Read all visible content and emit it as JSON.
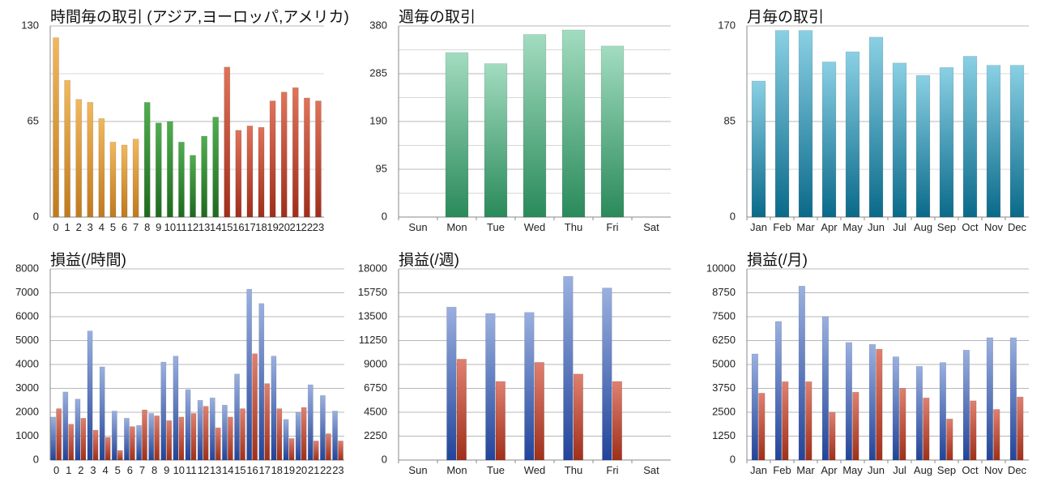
{
  "chart_data": [
    {
      "type": "bar",
      "title": "時間毎の取引 (アジア,ヨーロッパ,アメリカ)",
      "categories": [
        "0",
        "1",
        "2",
        "3",
        "4",
        "5",
        "6",
        "7",
        "8",
        "9",
        "10",
        "11",
        "12",
        "13",
        "14",
        "15",
        "16",
        "17",
        "18",
        "19",
        "20",
        "21",
        "22",
        "23"
      ],
      "series": [
        {
          "values": [
            122,
            93,
            80,
            78,
            67,
            51,
            49,
            53,
            78,
            64,
            65,
            51,
            42,
            55,
            68,
            102,
            59,
            62,
            61,
            79,
            85,
            88,
            81,
            79
          ]
        }
      ],
      "bar_colors": {
        "asia": "#e0a040",
        "europe": "#2e8a2e",
        "america": "#c8503a"
      },
      "yticks": [
        "0",
        "65",
        "130"
      ],
      "ylim": [
        0,
        130
      ],
      "grid": true
    },
    {
      "type": "bar",
      "title": "週毎の取引",
      "categories": [
        "Sun",
        "Mon",
        "Tue",
        "Wed",
        "Thu",
        "Fri",
        "Sat"
      ],
      "series": [
        {
          "values": [
            0,
            327,
            305,
            363,
            372,
            340,
            0
          ]
        }
      ],
      "bar_color": "#3aa06a",
      "yticks": [
        "0",
        "95",
        "190",
        "285",
        "380"
      ],
      "ylim": [
        0,
        380
      ],
      "grid": true
    },
    {
      "type": "bar",
      "title": "月毎の取引",
      "categories": [
        "Jan",
        "Feb",
        "Mar",
        "Apr",
        "May",
        "Jun",
        "Jul",
        "Aug",
        "Sep",
        "Oct",
        "Nov",
        "Dec"
      ],
      "series": [
        {
          "values": [
            121,
            166,
            166,
            138,
            147,
            160,
            137,
            126,
            133,
            143,
            135,
            135
          ]
        }
      ],
      "bar_color": "#2a9ac0",
      "yticks": [
        "0",
        "85",
        "170"
      ],
      "ylim": [
        0,
        170
      ],
      "grid": true
    },
    {
      "type": "bar",
      "title": "損益(/時間)",
      "categories": [
        "0",
        "1",
        "2",
        "3",
        "4",
        "5",
        "6",
        "7",
        "8",
        "9",
        "10",
        "11",
        "12",
        "13",
        "14",
        "15",
        "16",
        "17",
        "18",
        "19",
        "20",
        "21",
        "22",
        "23"
      ],
      "series": [
        {
          "values": [
            1800,
            2850,
            2550,
            5400,
            3900,
            2050,
            1750,
            1450,
            1950,
            4100,
            4350,
            2950,
            2500,
            2600,
            2300,
            3600,
            7150,
            6550,
            4350,
            1700,
            2000,
            3150,
            2700,
            2050
          ]
        },
        {
          "values": [
            2150,
            1500,
            1750,
            1250,
            950,
            400,
            1400,
            2100,
            1850,
            1650,
            1800,
            1950,
            2250,
            1350,
            1800,
            2150,
            4450,
            3200,
            2150,
            900,
            2200,
            800,
            1100,
            800
          ]
        }
      ],
      "series_colors": [
        "#4468b8",
        "#c0442a"
      ],
      "yticks": [
        "0",
        "1000",
        "2000",
        "3000",
        "4000",
        "5000",
        "6000",
        "7000",
        "8000"
      ],
      "ylim": [
        0,
        8000
      ],
      "grid": true
    },
    {
      "type": "bar",
      "title": "損益(/週)",
      "categories": [
        "Sun",
        "Mon",
        "Tue",
        "Wed",
        "Thu",
        "Fri",
        "Sat"
      ],
      "series": [
        {
          "values": [
            0,
            14400,
            13800,
            13900,
            17300,
            16200,
            0
          ]
        },
        {
          "values": [
            0,
            9500,
            7400,
            9200,
            8100,
            7400,
            0
          ]
        }
      ],
      "series_colors": [
        "#4468b8",
        "#c0442a"
      ],
      "yticks": [
        "0",
        "2250",
        "4500",
        "6750",
        "9000",
        "11250",
        "13500",
        "15750",
        "18000"
      ],
      "ylim": [
        0,
        18000
      ],
      "grid": true
    },
    {
      "type": "bar",
      "title": "損益(/月)",
      "categories": [
        "Jan",
        "Feb",
        "Mar",
        "Apr",
        "May",
        "Jun",
        "Jul",
        "Aug",
        "Sep",
        "Oct",
        "Nov",
        "Dec"
      ],
      "series": [
        {
          "values": [
            5550,
            7250,
            9100,
            7500,
            6150,
            6050,
            5400,
            4900,
            5100,
            5750,
            6400,
            6400
          ]
        },
        {
          "values": [
            3500,
            4100,
            4100,
            2500,
            3550,
            5800,
            3750,
            3250,
            2150,
            3100,
            2650,
            3300
          ]
        }
      ],
      "series_colors": [
        "#4468b8",
        "#c0442a"
      ],
      "yticks": [
        "0",
        "1250",
        "2500",
        "3750",
        "5000",
        "6250",
        "7500",
        "8750",
        "10000"
      ],
      "ylim": [
        0,
        10000
      ],
      "grid": true
    }
  ]
}
